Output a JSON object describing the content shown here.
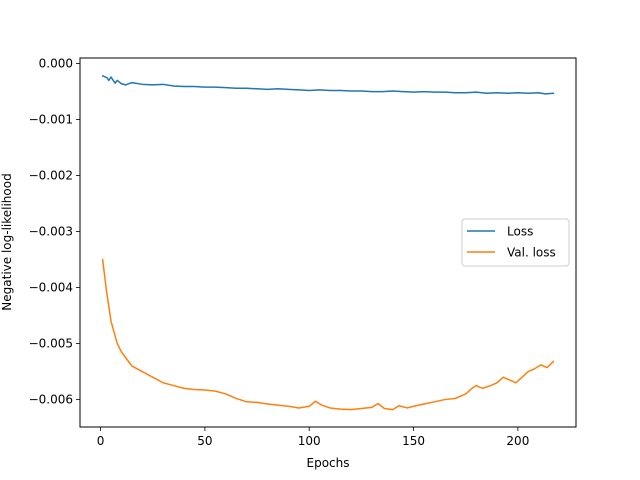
{
  "chart_data": {
    "type": "line",
    "xlabel": "Epochs",
    "ylabel": "Negative log-likelihood",
    "xlim": [
      -9.85,
      227.85
    ],
    "ylim": [
      -0.00649,
      0.0001
    ],
    "xticks": [
      0,
      50,
      100,
      150,
      200
    ],
    "yticks": [
      0.0,
      -0.001,
      -0.002,
      -0.003,
      -0.004,
      -0.005,
      -0.006
    ],
    "ytick_labels": [
      "0.000",
      "−0.001",
      "−0.002",
      "−0.003",
      "−0.004",
      "−0.005",
      "−0.006"
    ],
    "grid": false,
    "legend": {
      "position": "center-right"
    },
    "series": [
      {
        "name": "Loss",
        "color": "#1f77b4",
        "points": [
          [
            1,
            -0.00022
          ],
          [
            3,
            -0.00025
          ],
          [
            4,
            -0.0003
          ],
          [
            5,
            -0.00024
          ],
          [
            7,
            -0.00035
          ],
          [
            8,
            -0.0003
          ],
          [
            10,
            -0.00036
          ],
          [
            12,
            -0.00038
          ],
          [
            15,
            -0.00034
          ],
          [
            20,
            -0.00037
          ],
          [
            25,
            -0.00038
          ],
          [
            30,
            -0.00037
          ],
          [
            35,
            -0.0004
          ],
          [
            40,
            -0.00041
          ],
          [
            45,
            -0.00041
          ],
          [
            50,
            -0.00042
          ],
          [
            55,
            -0.00042
          ],
          [
            60,
            -0.00043
          ],
          [
            65,
            -0.00044
          ],
          [
            70,
            -0.00044
          ],
          [
            75,
            -0.00045
          ],
          [
            80,
            -0.00046
          ],
          [
            85,
            -0.00045
          ],
          [
            90,
            -0.00046
          ],
          [
            95,
            -0.00047
          ],
          [
            100,
            -0.00048
          ],
          [
            105,
            -0.00047
          ],
          [
            110,
            -0.00048
          ],
          [
            115,
            -0.00048
          ],
          [
            120,
            -0.00049
          ],
          [
            125,
            -0.00049
          ],
          [
            130,
            -0.0005
          ],
          [
            135,
            -0.0005
          ],
          [
            140,
            -0.00049
          ],
          [
            145,
            -0.0005
          ],
          [
            150,
            -0.00051
          ],
          [
            155,
            -0.0005
          ],
          [
            160,
            -0.00051
          ],
          [
            165,
            -0.00051
          ],
          [
            170,
            -0.00052
          ],
          [
            175,
            -0.00052
          ],
          [
            180,
            -0.00051
          ],
          [
            185,
            -0.00053
          ],
          [
            190,
            -0.00052
          ],
          [
            195,
            -0.00053
          ],
          [
            200,
            -0.00052
          ],
          [
            205,
            -0.00053
          ],
          [
            210,
            -0.00052
          ],
          [
            213,
            -0.00054
          ],
          [
            217,
            -0.00053
          ]
        ]
      },
      {
        "name": "Val. loss",
        "color": "#ff7f0e",
        "points": [
          [
            1,
            -0.0035
          ],
          [
            3,
            -0.0041
          ],
          [
            5,
            -0.0046
          ],
          [
            8,
            -0.005
          ],
          [
            10,
            -0.00515
          ],
          [
            13,
            -0.0053
          ],
          [
            15,
            -0.0054
          ],
          [
            20,
            -0.0055
          ],
          [
            25,
            -0.0056
          ],
          [
            30,
            -0.0057
          ],
          [
            35,
            -0.00575
          ],
          [
            40,
            -0.0058
          ],
          [
            45,
            -0.00582
          ],
          [
            50,
            -0.00583
          ],
          [
            55,
            -0.00585
          ],
          [
            60,
            -0.0059
          ],
          [
            65,
            -0.00598
          ],
          [
            70,
            -0.00604
          ],
          [
            75,
            -0.00605
          ],
          [
            80,
            -0.00608
          ],
          [
            85,
            -0.0061
          ],
          [
            90,
            -0.00612
          ],
          [
            95,
            -0.00615
          ],
          [
            100,
            -0.00612
          ],
          [
            103,
            -0.00603
          ],
          [
            106,
            -0.0061
          ],
          [
            110,
            -0.00615
          ],
          [
            115,
            -0.00617
          ],
          [
            120,
            -0.00618
          ],
          [
            125,
            -0.00616
          ],
          [
            130,
            -0.00614
          ],
          [
            133,
            -0.00607
          ],
          [
            136,
            -0.00616
          ],
          [
            140,
            -0.00618
          ],
          [
            143,
            -0.00611
          ],
          [
            147,
            -0.00615
          ],
          [
            150,
            -0.00612
          ],
          [
            155,
            -0.00608
          ],
          [
            160,
            -0.00604
          ],
          [
            165,
            -0.006
          ],
          [
            170,
            -0.00598
          ],
          [
            175,
            -0.0059
          ],
          [
            178,
            -0.0058
          ],
          [
            180,
            -0.00575
          ],
          [
            183,
            -0.0058
          ],
          [
            187,
            -0.00575
          ],
          [
            190,
            -0.0057
          ],
          [
            193,
            -0.0056
          ],
          [
            196,
            -0.00565
          ],
          [
            199,
            -0.0057
          ],
          [
            202,
            -0.0056
          ],
          [
            205,
            -0.0055
          ],
          [
            208,
            -0.00545
          ],
          [
            211,
            -0.00538
          ],
          [
            214,
            -0.00543
          ],
          [
            217,
            -0.00532
          ]
        ]
      }
    ]
  }
}
